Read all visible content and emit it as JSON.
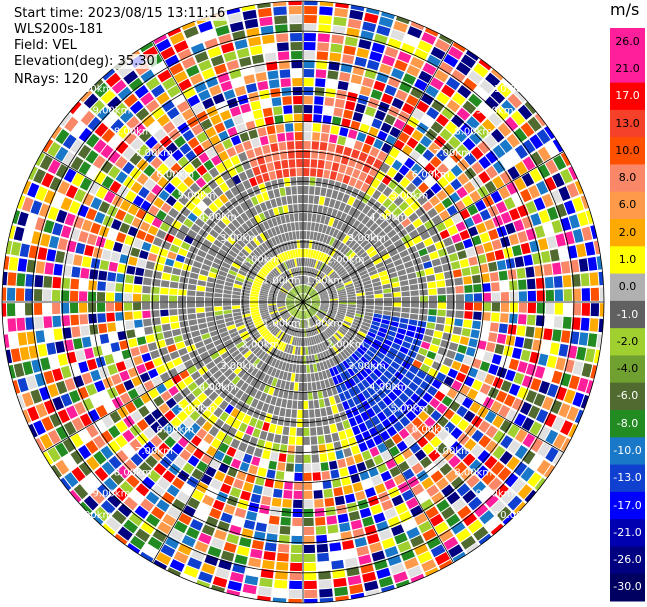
{
  "info": {
    "start_time": "Start time: 2023/08/15 13:11:16",
    "instrument": "WLS200s-181",
    "field": "Field: VEL",
    "elevation": "Elevation(deg): 35.30",
    "nrays": "NRays: 120"
  },
  "chart_data": {
    "type": "heatmap",
    "projection": "polar PPI",
    "title": "",
    "colorbar": {
      "unit": "m/s",
      "ticks": [
        "26.0",
        "21.0",
        "17.0",
        "13.0",
        "10.0",
        "8.0",
        "6.0",
        "2.0",
        "1.0",
        "0.0",
        "-1.0",
        "-2.0",
        "-4.0",
        "-6.0",
        "-8.0",
        "-10.0",
        "-13.0",
        "-17.0",
        "-21.0",
        "-26.0",
        "-30.0"
      ],
      "colors": [
        "#ff1f9a",
        "#ff1f9a",
        "#ff0000",
        "#f5402a",
        "#ff5000",
        "#fa8868",
        "#ff9a4a",
        "#ffaa00",
        "#ffff00",
        "#b0b0b0",
        "#606060",
        "#a0d030",
        "#70a030",
        "#506a30",
        "#228b22",
        "#1a78c8",
        "#1040d0",
        "#0000ff",
        "#0000b0",
        "#000080",
        "#000060"
      ]
    },
    "range_rings": {
      "labels": [
        "1.00km",
        "2.00km",
        "3.00km",
        "4.00km",
        "5.00km",
        "6.00km",
        "7.00km",
        "8.00km",
        "9.00km",
        "10.00km"
      ]
    },
    "n_rays": 120,
    "grid": true
  }
}
